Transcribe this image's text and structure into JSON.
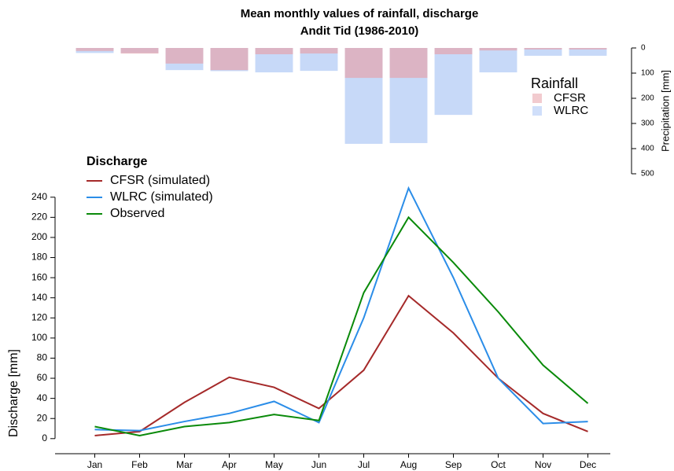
{
  "chart_data": [
    {
      "type": "bar",
      "title": "Mean monthly values of rainfall, discharge",
      "subtitle": "Andit Tid (1986-2010)",
      "legend_title": "Rainfall",
      "ylabel": "Precipitation [mm]",
      "inverted": true,
      "ylim": [
        0,
        500
      ],
      "yticks": [
        0,
        100,
        200,
        300,
        400,
        500
      ],
      "series": [
        {
          "name": "WLRC",
          "color": "#a9c4f5",
          "values": [
            20,
            20,
            88,
            92,
            97,
            91,
            381,
            378,
            266,
            97,
            31,
            31
          ]
        },
        {
          "name": "CFSR",
          "color": "#e8a0a8",
          "values": [
            12,
            22,
            62,
            88,
            25,
            22,
            119,
            119,
            25,
            10,
            6,
            6
          ]
        }
      ]
    },
    {
      "type": "line",
      "legend_title": "Discharge",
      "ylabel": "Discharge [mm]",
      "categories": [
        "Jan",
        "Feb",
        "Mar",
        "Apr",
        "May",
        "Jun",
        "Jul",
        "Aug",
        "Sep",
        "Oct",
        "Nov",
        "Dec"
      ],
      "ylim": [
        -15,
        250
      ],
      "yticks": [
        0,
        20,
        40,
        60,
        80,
        100,
        120,
        140,
        160,
        180,
        200,
        220,
        240
      ],
      "series": [
        {
          "name": "CFSR (simulated)",
          "color": "#a52a2a",
          "values": [
            3,
            7,
            36,
            61,
            51,
            30,
            68,
            142,
            105,
            60,
            25,
            7
          ]
        },
        {
          "name": "WLRC (simulated)",
          "color": "#2b8de8",
          "values": [
            9,
            8,
            17,
            25,
            37,
            16,
            120,
            249,
            160,
            60,
            15,
            17
          ]
        },
        {
          "name": "Observed",
          "color": "#0a8a0a",
          "values": [
            12,
            3,
            12,
            16,
            24,
            18,
            145,
            220,
            175,
            126,
            73,
            35
          ]
        }
      ]
    }
  ]
}
